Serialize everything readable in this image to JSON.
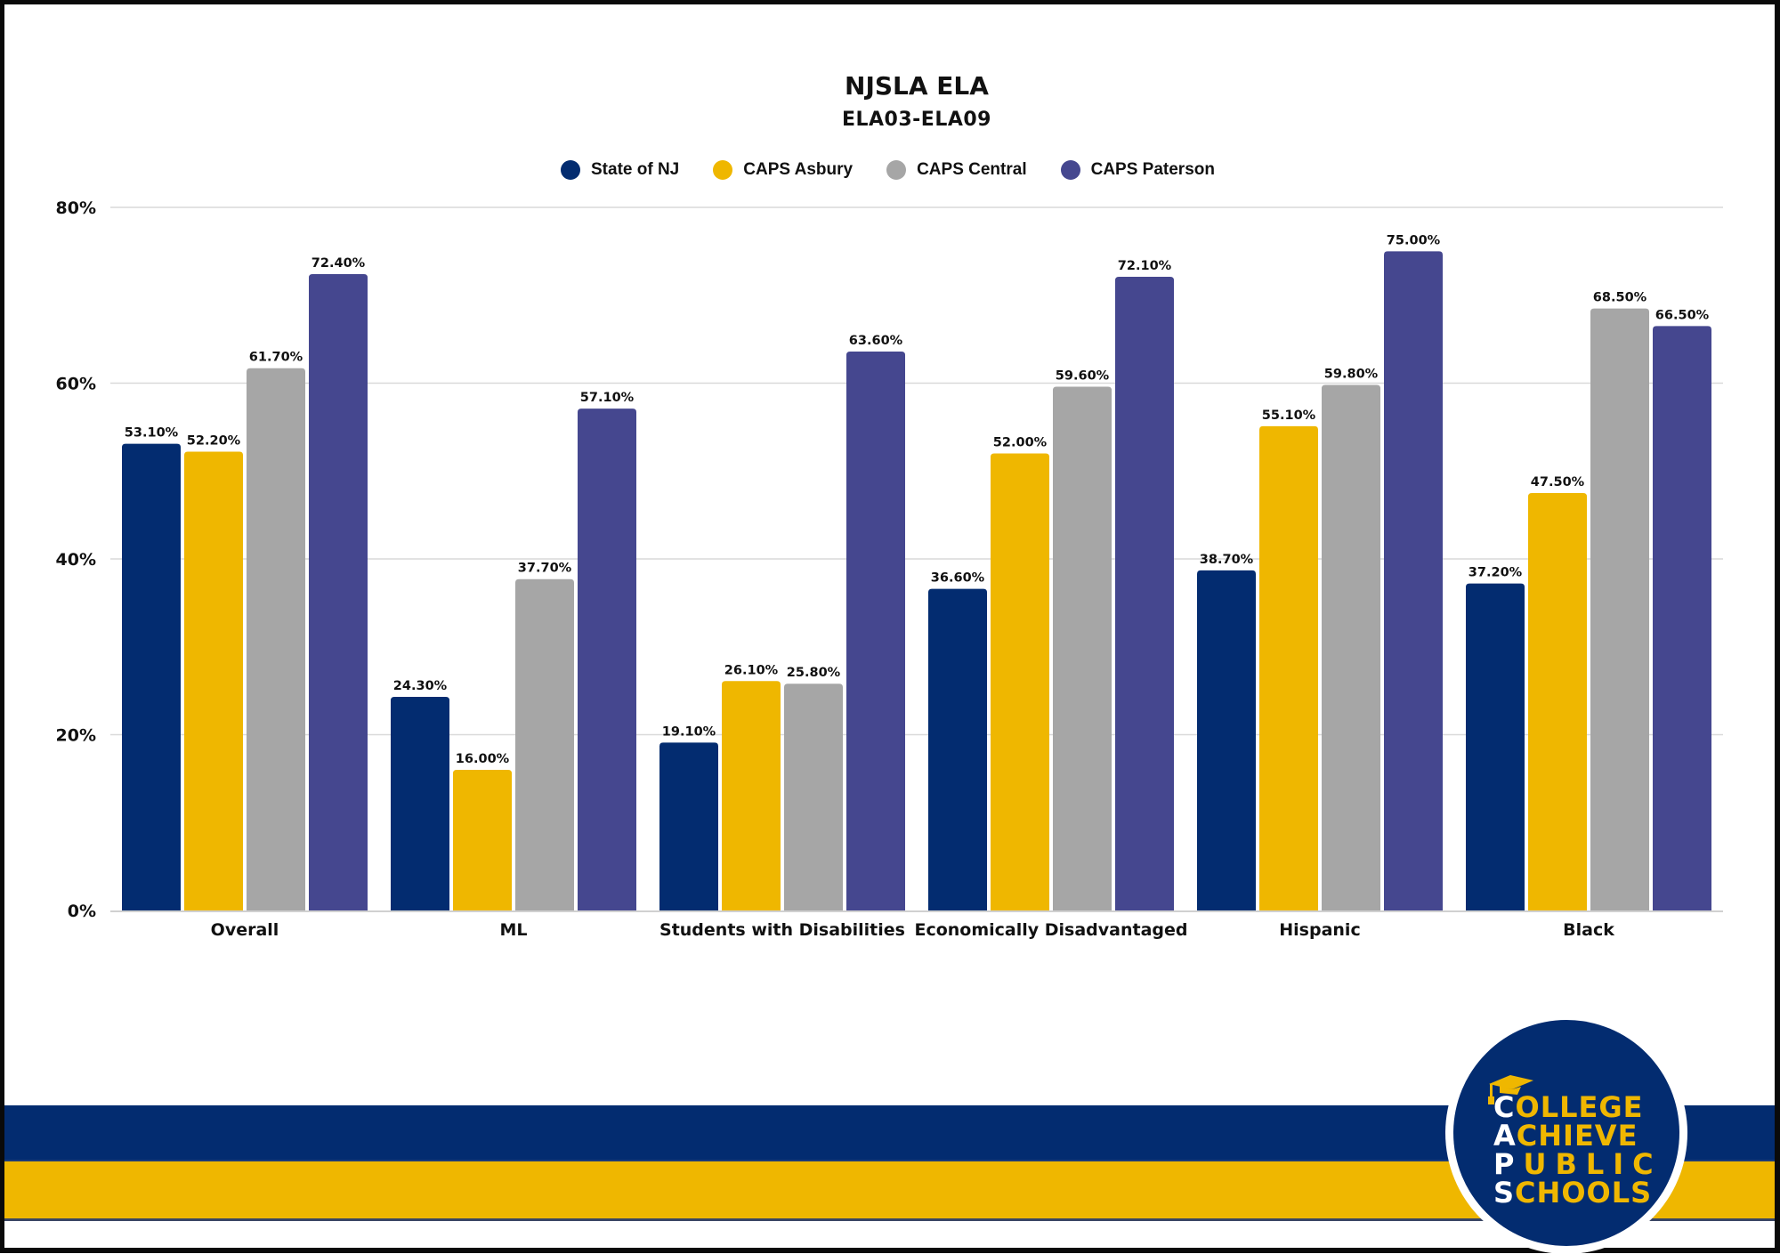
{
  "page": {
    "title": "NJSLA ELA",
    "subtitle": "ELA03-ELA09"
  },
  "legend": [
    {
      "label": "State of NJ",
      "color": "#032c70"
    },
    {
      "label": "CAPS Asbury",
      "color": "#efb700"
    },
    {
      "label": "CAPS Central",
      "color": "#a6a6a6"
    },
    {
      "label": "CAPS Paterson",
      "color": "#45478f"
    }
  ],
  "logo": {
    "lines": [
      {
        "first": "C",
        "rest": "OLLEGE"
      },
      {
        "first": "A",
        "rest": "CHIEVE"
      },
      {
        "first": "P",
        "rest": "UBLIC"
      },
      {
        "first": "S",
        "rest": "CHOOLS"
      }
    ],
    "icon": "graduation-cap-icon"
  },
  "colors": {
    "navy": "#032c70",
    "gold": "#efb700",
    "gray": "#a6a6a6",
    "purple": "#45478f",
    "grid": "#d9d9d9"
  },
  "chart_data": {
    "type": "bar",
    "title": "NJSLA ELA",
    "subtitle": "ELA03-ELA09",
    "xlabel": "",
    "ylabel": "",
    "ylim": [
      0,
      80
    ],
    "yticks": [
      0,
      20,
      40,
      60,
      80
    ],
    "ytick_labels": [
      "0%",
      "20%",
      "40%",
      "60%",
      "80%"
    ],
    "grid": true,
    "legend_position": "top-center",
    "categories": [
      "Overall",
      "ML",
      "Students with Disabilities",
      "Economically Disadvantaged",
      "Hispanic",
      "Black"
    ],
    "series": [
      {
        "name": "State of NJ",
        "color": "#032c70",
        "values": [
          53.1,
          24.3,
          19.1,
          36.6,
          38.7,
          37.2
        ],
        "labels": [
          "53.10%",
          "24.30%",
          "19.10%",
          "36.60%",
          "38.70%",
          "37.20%"
        ]
      },
      {
        "name": "CAPS Asbury",
        "color": "#efb700",
        "values": [
          52.2,
          16.0,
          26.1,
          52.0,
          55.1,
          47.5
        ],
        "labels": [
          "52.20%",
          "16.00%",
          "26.10%",
          "52.00%",
          "55.10%",
          "47.50%"
        ]
      },
      {
        "name": "CAPS Central",
        "color": "#a6a6a6",
        "values": [
          61.7,
          37.7,
          25.8,
          59.6,
          59.8,
          68.5
        ],
        "labels": [
          "61.70%",
          "37.70%",
          "25.80%",
          "59.60%",
          "59.80%",
          "68.50%"
        ]
      },
      {
        "name": "CAPS Paterson",
        "color": "#45478f",
        "values": [
          72.4,
          57.1,
          63.6,
          72.1,
          75.0,
          66.5
        ],
        "labels": [
          "72.40%",
          "57.10%",
          "63.60%",
          "72.10%",
          "75.00%",
          "66.50%"
        ]
      }
    ]
  }
}
